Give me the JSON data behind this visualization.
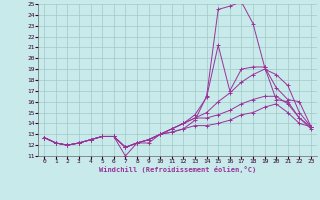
{
  "background_color": "#c8eaea",
  "grid_color": "#a0c8c8",
  "line_color": "#993399",
  "xlim": [
    -0.5,
    23.5
  ],
  "ylim": [
    11,
    25
  ],
  "xlabel": "Windchill (Refroidissement éolien,°C)",
  "xticks": [
    0,
    1,
    2,
    3,
    4,
    5,
    6,
    7,
    8,
    9,
    10,
    11,
    12,
    13,
    14,
    15,
    16,
    17,
    18,
    19,
    20,
    21,
    22,
    23
  ],
  "yticks": [
    11,
    12,
    13,
    14,
    15,
    16,
    17,
    18,
    19,
    20,
    21,
    22,
    23,
    24,
    25
  ],
  "series": [
    [
      12.7,
      12.2,
      12.0,
      12.2,
      12.5,
      12.8,
      12.8,
      11.0,
      12.2,
      12.2,
      13.0,
      13.2,
      13.5,
      14.3,
      16.5,
      24.5,
      24.8,
      25.2,
      23.2,
      19.2,
      16.2,
      16.0,
      14.5,
      13.7
    ],
    [
      12.7,
      12.2,
      12.0,
      12.2,
      12.5,
      12.8,
      12.8,
      11.8,
      12.2,
      12.5,
      13.0,
      13.5,
      14.0,
      14.8,
      16.4,
      21.2,
      17.0,
      19.0,
      19.2,
      19.2,
      17.3,
      16.2,
      16.0,
      13.7
    ],
    [
      12.7,
      12.2,
      12.0,
      12.2,
      12.5,
      12.8,
      12.8,
      11.8,
      12.2,
      12.5,
      13.0,
      13.5,
      14.0,
      14.5,
      15.0,
      16.0,
      16.8,
      17.8,
      18.5,
      19.0,
      18.5,
      17.5,
      15.0,
      13.7
    ],
    [
      12.7,
      12.2,
      12.0,
      12.2,
      12.5,
      12.8,
      12.8,
      11.8,
      12.2,
      12.5,
      13.0,
      13.5,
      14.0,
      14.5,
      14.5,
      14.8,
      15.2,
      15.8,
      16.2,
      16.5,
      16.5,
      15.8,
      14.5,
      13.5
    ],
    [
      12.7,
      12.2,
      12.0,
      12.2,
      12.5,
      12.8,
      12.8,
      11.8,
      12.2,
      12.5,
      13.0,
      13.2,
      13.5,
      13.8,
      13.8,
      14.0,
      14.3,
      14.8,
      15.0,
      15.5,
      15.8,
      15.0,
      14.0,
      13.7
    ]
  ]
}
